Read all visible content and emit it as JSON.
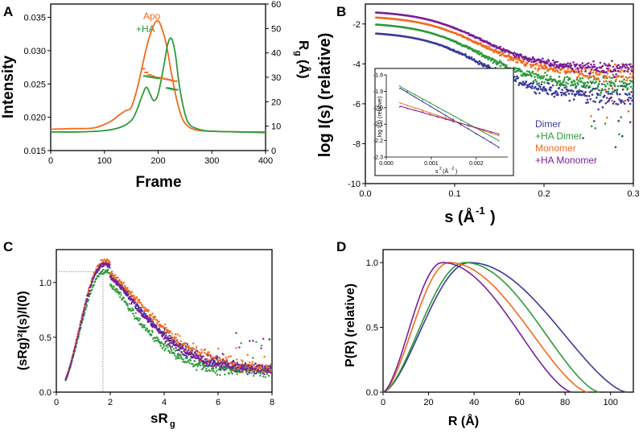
{
  "colors": {
    "apo": "#f26b1d",
    "ha": "#2e9a3a",
    "dimer": "#3b3b9a",
    "ha_dimer": "#2e9a3a",
    "monomer": "#f26b1d",
    "ha_monomer": "#7a1f9a"
  },
  "chart_data": [
    {
      "panel": "A",
      "type": "line",
      "xlabel": "Frame",
      "ylabel": "Intensity",
      "y2label_main": "R",
      "y2label_sub": "g",
      "y2label_unit": "(Å)",
      "xlim": [
        0,
        400
      ],
      "ylim": [
        0.015,
        0.037
      ],
      "y2lim": [
        0,
        60
      ],
      "xticks": [
        "0",
        "100",
        "200",
        "300",
        "400"
      ],
      "yticks": [
        "0.015",
        "0.020",
        "0.025",
        "0.030",
        "0.035"
      ],
      "y2ticks": [
        "0",
        "10",
        "20",
        "30",
        "40",
        "50",
        "60"
      ],
      "legend": [
        "Apo",
        "+HA"
      ],
      "series": [
        {
          "name": "Apo",
          "color_key": "apo",
          "x": [
            0,
            40,
            80,
            110,
            130,
            140,
            150,
            160,
            170,
            180,
            190,
            198,
            205,
            215,
            225,
            235,
            245,
            255,
            270,
            300,
            350,
            400
          ],
          "y": [
            0.0182,
            0.0183,
            0.0184,
            0.0193,
            0.0205,
            0.021,
            0.0215,
            0.024,
            0.0275,
            0.031,
            0.0335,
            0.0345,
            0.0338,
            0.031,
            0.0265,
            0.0225,
            0.0198,
            0.0187,
            0.0181,
            0.0179,
            0.0178,
            0.0178
          ]
        },
        {
          "name": "+HA",
          "color_key": "ha",
          "x": [
            0,
            50,
            100,
            130,
            150,
            160,
            170,
            178,
            185,
            192,
            200,
            210,
            218,
            225,
            232,
            240,
            250,
            260,
            280,
            300,
            350,
            400
          ],
          "y": [
            0.0178,
            0.0178,
            0.018,
            0.0185,
            0.0195,
            0.021,
            0.0232,
            0.0245,
            0.0235,
            0.0225,
            0.0235,
            0.0275,
            0.031,
            0.0318,
            0.0295,
            0.0245,
            0.0205,
            0.0188,
            0.0181,
            0.0179,
            0.0178,
            0.0177
          ]
        },
        {
          "name": "Apo Rg",
          "color_key": "apo",
          "axis": "y2",
          "x": [
            172,
            178,
            184,
            190,
            196,
            202,
            208,
            214,
            220,
            226,
            232
          ],
          "y": [
            33.5,
            32,
            31,
            30.5,
            30,
            29.8,
            29.5,
            29.3,
            29,
            28.7,
            28.4
          ]
        },
        {
          "name": "+HA Rg",
          "color_key": "ha",
          "axis": "y2",
          "x": [
            176,
            182,
            188,
            194,
            200,
            218,
            222,
            226,
            230,
            234
          ],
          "y": [
            30.5,
            30.2,
            30,
            29.8,
            29.6,
            25.6,
            25.4,
            25.2,
            25.0,
            24.9
          ]
        }
      ]
    },
    {
      "panel": "B",
      "type": "scatter",
      "xlabel_main": "s (Å",
      "xlabel_sup": "-1",
      "xlabel_end": ")",
      "ylabel": "log I(s) (relative)",
      "xlim": [
        0,
        0.3
      ],
      "ylim": [
        -10,
        -1
      ],
      "xticks": [
        "0.0",
        "0.1",
        "0.2",
        "0.3"
      ],
      "yticks": [
        "-10",
        "-8",
        "-6",
        "-4",
        "-2"
      ],
      "legend": [
        "Dimer",
        "+HA Dimer",
        "Monomer",
        "+HA Monomer"
      ],
      "series": [
        {
          "name": "Dimer",
          "color_key": "dimer",
          "start": -2.45,
          "plateau": -5.6,
          "noise": 0.9
        },
        {
          "name": "+HA Dimer",
          "color_key": "ha_dimer",
          "start": -2.0,
          "plateau": -5.1,
          "noise": 0.8
        },
        {
          "name": "Monomer",
          "color_key": "monomer",
          "start": -1.65,
          "plateau": -4.5,
          "noise": 0.7
        },
        {
          "name": "+HA Monomer",
          "color_key": "ha_monomer",
          "start": -1.4,
          "plateau": -4.25,
          "noise": 0.55
        }
      ],
      "inset": {
        "xlabel_main": "s",
        "xlabel_sup": "2",
        "xlabel_unit": "(Å",
        "xlabel_unit_sup": "-2",
        "xlabel_end": ")",
        "ylabel": "log I(s) (relative)",
        "xlim": [
          0,
          0.0027
        ],
        "ylim": [
          -2.3,
          -1.8
        ],
        "xticks": [
          "0.000",
          "0.001",
          "0.002"
        ],
        "yticks": [
          "-1.8",
          "-1.9",
          "-2.0",
          "-2.1",
          "-2.2",
          "-2.3"
        ],
        "lines": [
          {
            "name": "Dimer",
            "color_key": "dimer",
            "x": [
              0.0003,
              0.0025
            ],
            "y": [
              -1.88,
              -2.24
            ]
          },
          {
            "name": "+HA Dimer",
            "color_key": "ha_dimer",
            "x": [
              0.0003,
              0.0025
            ],
            "y": [
              -1.87,
              -2.2
            ]
          },
          {
            "name": "Monomer",
            "color_key": "monomer",
            "x": [
              0.0003,
              0.0025
            ],
            "y": [
              -1.97,
              -2.17
            ]
          },
          {
            "name": "+HA Monomer",
            "color_key": "ha_monomer",
            "x": [
              0.0003,
              0.0025
            ],
            "y": [
              -1.99,
              -2.16
            ]
          }
        ]
      }
    },
    {
      "panel": "C",
      "type": "scatter",
      "xlabel_main": "sR",
      "xlabel_sub": "g",
      "ylabel": "(sRg)²I(s)/I(0)",
      "xlim": [
        0,
        8
      ],
      "ylim": [
        0,
        1.3
      ],
      "xticks": [
        "0",
        "2",
        "4",
        "6",
        "8"
      ],
      "yticks": [
        "0.0",
        "0.5",
        "1.0"
      ],
      "reference": {
        "x": 1.73,
        "y": 1.1
      },
      "series": [
        {
          "name": "Dimer",
          "color_key": "dimer",
          "peak": 1.17
        },
        {
          "name": "+HA Dimer",
          "color_key": "ha_dimer",
          "peak": 1.1
        },
        {
          "name": "Monomer",
          "color_key": "monomer",
          "peak": 1.2
        },
        {
          "name": "+HA Monomer",
          "color_key": "ha_monomer",
          "peak": 1.17
        }
      ]
    },
    {
      "panel": "D",
      "type": "line",
      "xlabel": "R (Å)",
      "ylabel": "P(R) (relative)",
      "xlim": [
        0,
        110
      ],
      "ylim": [
        0,
        1.1
      ],
      "xticks": [
        "0",
        "20",
        "40",
        "60",
        "80",
        "100"
      ],
      "yticks": [
        "0.0",
        "0.5",
        "1.0"
      ],
      "series": [
        {
          "name": "Dimer",
          "color_key": "dimer",
          "peak_x": 38,
          "dmax": 107
        },
        {
          "name": "+HA Dimer",
          "color_key": "ha_dimer",
          "peak_x": 36,
          "dmax": 95
        },
        {
          "name": "Monomer",
          "color_key": "monomer",
          "peak_x": 29,
          "dmax": 90
        },
        {
          "name": "+HA Monomer",
          "color_key": "ha_monomer",
          "peak_x": 26,
          "dmax": 83
        }
      ]
    }
  ]
}
